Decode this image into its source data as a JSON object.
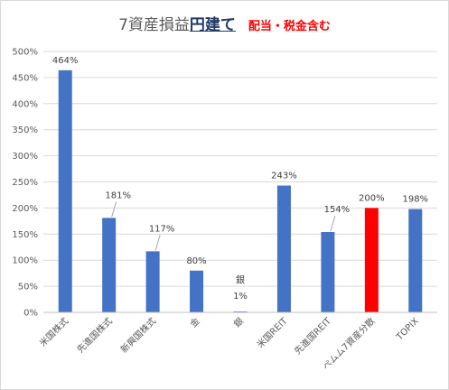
{
  "chart_data": {
    "type": "bar",
    "title": {
      "main": "7資産損益",
      "emphasis": "円建て",
      "note": "配当・税金含む"
    },
    "categories": [
      "米国株式",
      "先進国株式",
      "新興国株式",
      "金",
      "銀",
      "米国REIT",
      "先進国REIT",
      "ぺムム7資産分散",
      "TOPIX"
    ],
    "values": [
      464,
      181,
      117,
      80,
      1,
      243,
      154,
      200,
      198
    ],
    "data_labels": [
      "464%",
      "181%",
      "117%",
      "80%",
      "1%",
      "243%",
      "154%",
      "200%",
      "198%"
    ],
    "extra_label": {
      "text": "銀",
      "category_index": 4
    },
    "highlight_index": 7,
    "ylim": [
      0,
      500
    ],
    "yticks": [
      "0%",
      "50%",
      "100%",
      "150%",
      "200%",
      "250%",
      "300%",
      "350%",
      "400%",
      "450%",
      "500%"
    ],
    "xlabel": "",
    "ylabel": "",
    "grid": "horizontal",
    "colors": {
      "bar": "#4472c4",
      "highlight": "#ff0000",
      "grid": "#d9d9d9"
    }
  }
}
